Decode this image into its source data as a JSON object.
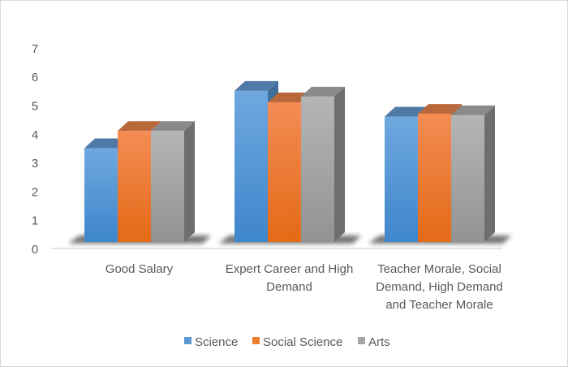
{
  "chart_data": {
    "type": "bar",
    "style": "3d-clustered-column",
    "title": "",
    "xlabel": "",
    "ylabel": "",
    "ylim": [
      0,
      7
    ],
    "yticks": [
      0,
      1,
      2,
      3,
      4,
      5,
      6,
      7
    ],
    "grid": false,
    "legend_position": "bottom",
    "categories": [
      [
        "Good Salary"
      ],
      [
        "Expert Career and High",
        "Demand"
      ],
      [
        "Teacher Morale, Social",
        "Demand, High Demand",
        "and Teacher Morale"
      ]
    ],
    "series": [
      {
        "name": "Science",
        "values": [
          3.5,
          5.5,
          4.6
        ],
        "color": "#5b9bd5"
      },
      {
        "name": "Social Science",
        "values": [
          4.1,
          5.1,
          4.7
        ],
        "color": "#ed7d31"
      },
      {
        "name": "Arts",
        "values": [
          4.1,
          5.3,
          4.65
        ],
        "color": "#a5a5a5"
      }
    ]
  }
}
